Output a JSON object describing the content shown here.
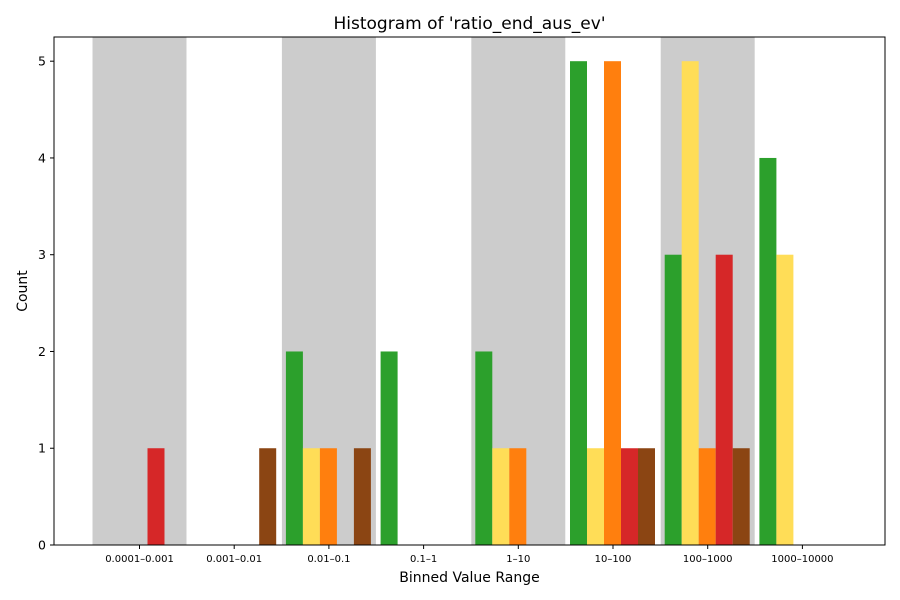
{
  "chart_data": {
    "type": "bar",
    "title": "Histogram of 'ratio_end_aus_ev'",
    "xlabel": "Binned Value Range",
    "ylabel": "Count",
    "categories": [
      "0.0001–0.001",
      "0.001–0.01",
      "0.01–0.1",
      "0.1–1",
      "1–10",
      "10–100",
      "100–1000",
      "1000–10000"
    ],
    "ylim": [
      0,
      5.25
    ],
    "yticks": [
      0,
      1,
      2,
      3,
      4,
      5
    ],
    "grid": false,
    "legend": "none",
    "shaded_bins": [
      0,
      2,
      4,
      6
    ],
    "shade_color": "#cccccc",
    "series": [
      {
        "color": "#2ca02c",
        "values": [
          0,
          0,
          2,
          2,
          2,
          5,
          3,
          4
        ]
      },
      {
        "color": "#ffdd57",
        "values": [
          0,
          0,
          1,
          0,
          1,
          1,
          5,
          3
        ]
      },
      {
        "color": "#ff7f0e",
        "values": [
          0,
          0,
          1,
          0,
          1,
          5,
          1,
          0
        ]
      },
      {
        "color": "#d62728",
        "values": [
          1,
          0,
          0,
          0,
          0,
          1,
          3,
          0
        ]
      },
      {
        "color": "#8b4513",
        "values": [
          0,
          1,
          1,
          0,
          0,
          1,
          1,
          0
        ]
      }
    ]
  }
}
